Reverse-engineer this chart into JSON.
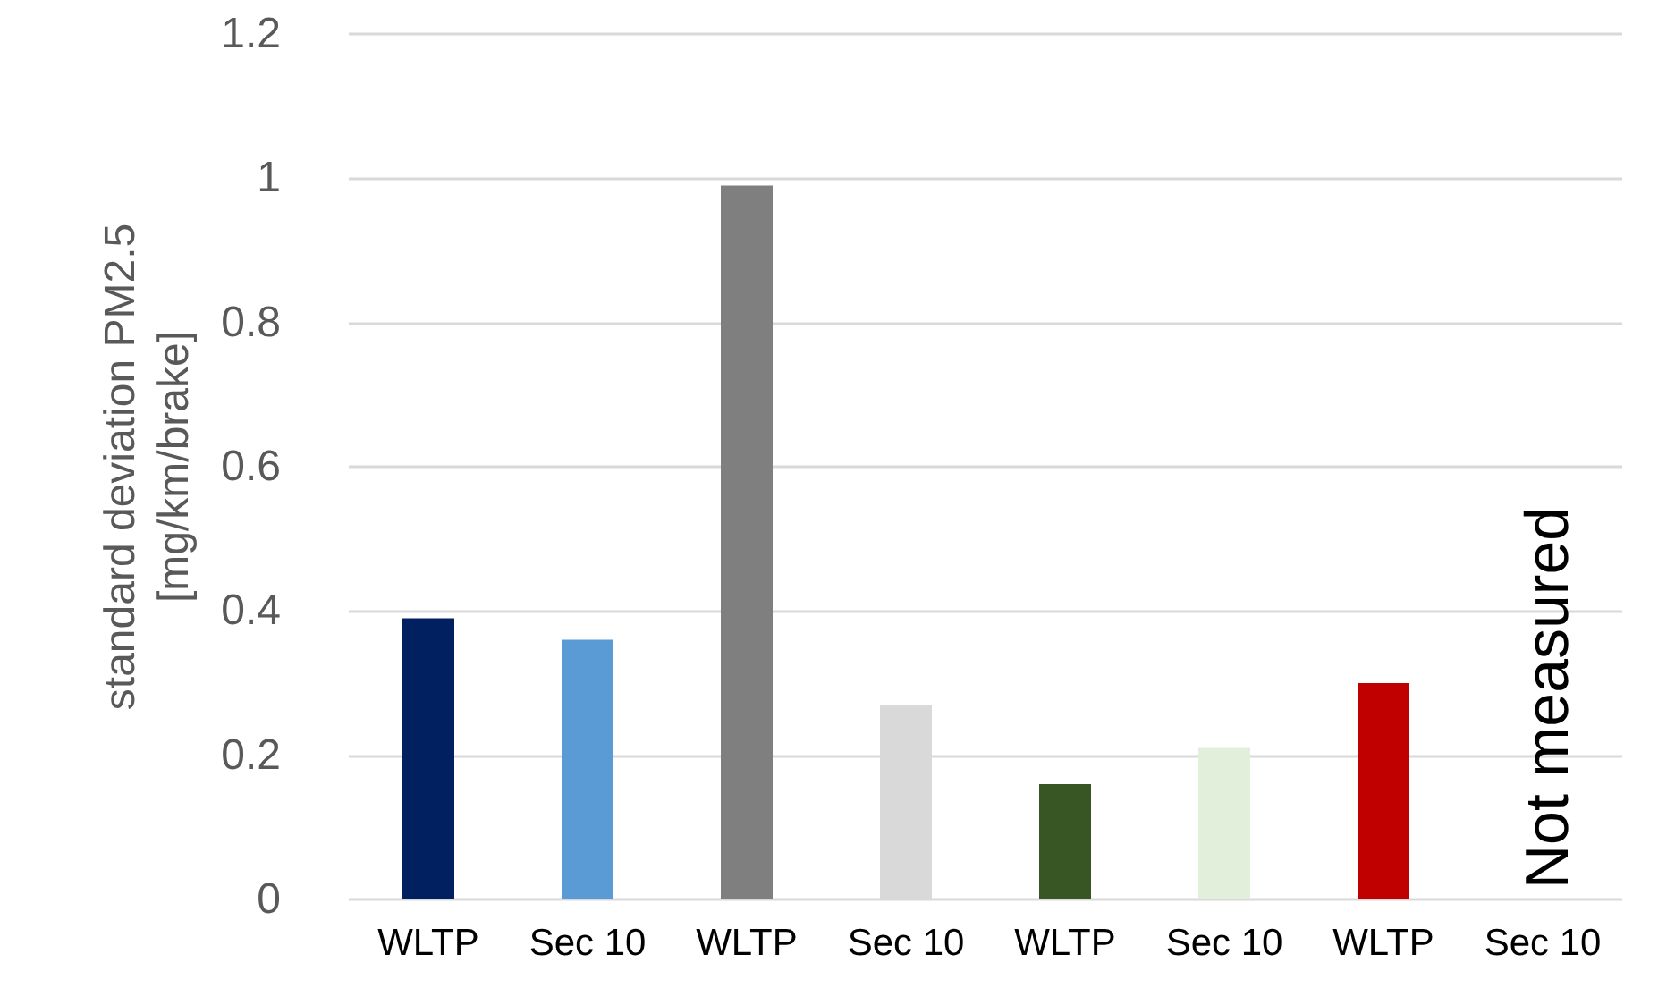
{
  "chart_data": {
    "type": "bar",
    "ylabel": "standard deviation PM2.5\n[mg/km/brake]",
    "categories": [
      "WLTP",
      "Sec 10",
      "WLTP",
      "Sec 10",
      "WLTP",
      "Sec 10",
      "WLTP",
      "Sec 10"
    ],
    "values": [
      0.39,
      0.36,
      0.99,
      0.27,
      0.16,
      0.21,
      0.3,
      null
    ],
    "colors": [
      "#002060",
      "#5b9bd5",
      "#7f7f7f",
      "#d9d9d9",
      "#375623",
      "#e2efda",
      "#c00000",
      "#c00000"
    ],
    "ylim": [
      0,
      1.2
    ],
    "yticks": [
      0,
      0.2,
      0.4,
      0.6,
      0.8,
      1,
      1.2
    ],
    "grid": "y",
    "annotations": [
      "Not measured"
    ]
  }
}
